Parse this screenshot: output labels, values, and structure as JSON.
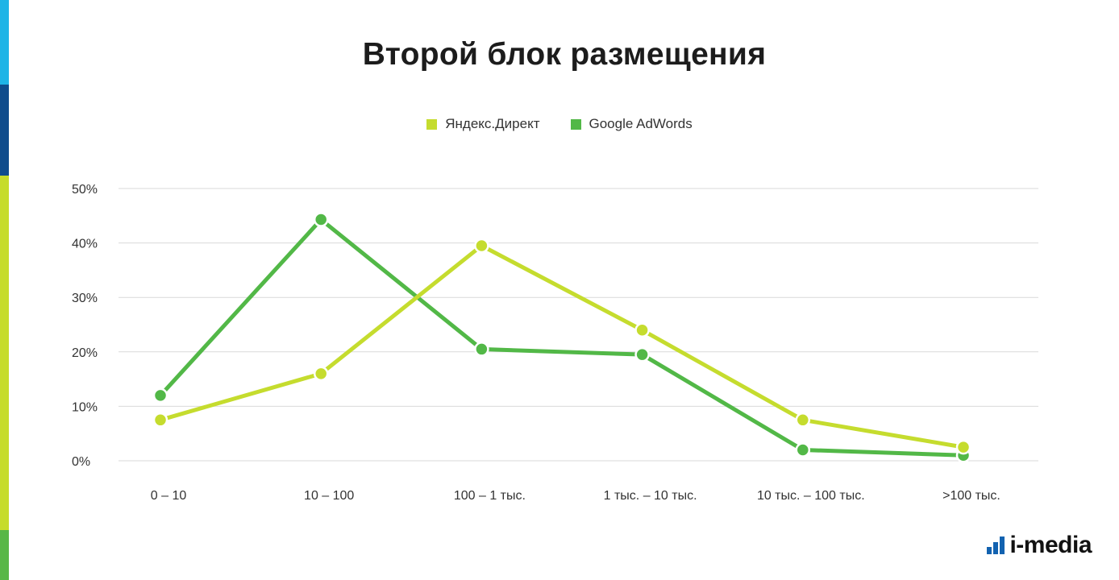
{
  "colors": {
    "accent_top": "#1EB4E6",
    "accent_mid": "#0F4C8C",
    "accent_lower": "#C6DC2A",
    "accent_bottom": "#58B747",
    "yandex": "#C5DC2E",
    "google": "#52B847",
    "grid": "#d9d9d9",
    "logo_blue": "#1262B0"
  },
  "title": "Второй блок размещения",
  "logo": {
    "text": "i-media",
    "icon": "bar-steps-icon"
  },
  "chart_data": {
    "type": "line",
    "title": "Второй блок размещения",
    "categories": [
      "0 – 10",
      "10 – 100",
      "100 – 1 тыс.",
      "1 тыс. – 10 тыс.",
      "10 тыс. – 100 тыс.",
      ">100 тыс."
    ],
    "series": [
      {
        "name": "Яндекс.Директ",
        "color": "#C5DC2E",
        "values": [
          7.5,
          16,
          39.5,
          24,
          7.5,
          2.5
        ]
      },
      {
        "name": "Google AdWords",
        "color": "#52B847",
        "values": [
          12,
          44.3,
          20.5,
          19.5,
          2,
          1
        ]
      }
    ],
    "ylim": [
      0,
      50
    ],
    "yticks": [
      "0%",
      "10%",
      "20%",
      "30%",
      "40%",
      "50%"
    ],
    "grid": true,
    "legend": "top-center",
    "xlabel": "",
    "ylabel": ""
  }
}
